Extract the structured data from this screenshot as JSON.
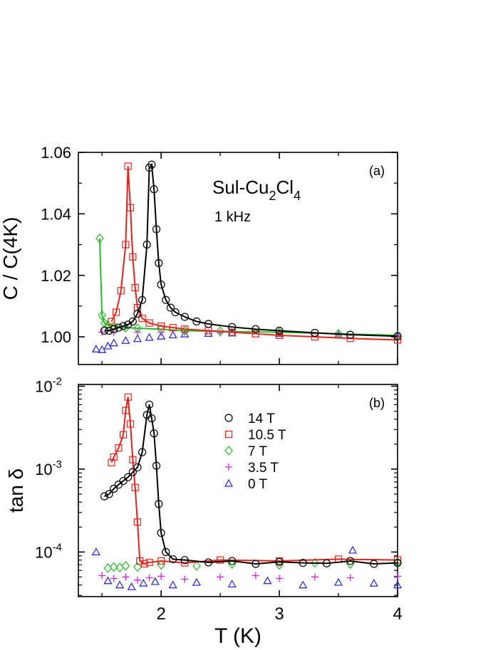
{
  "chart_data": [
    {
      "panel_label": "(a)",
      "type": "line",
      "ylabel": "C / C(4K)",
      "xlim": [
        1.3,
        4.0
      ],
      "ylim": [
        0.991,
        1.06
      ],
      "yscale": "linear",
      "x_ticks": [
        "2",
        "3",
        "4"
      ],
      "y_ticks": [
        "1.00",
        "1.02",
        "1.04",
        "1.06"
      ],
      "annotations": {
        "material_main": "Sul-Cu",
        "sub1": "2",
        "material_mid": "Cl",
        "sub2": "4",
        "frequency": "1 kHz"
      },
      "series": [
        {
          "name": "14 T",
          "color": "#000000",
          "marker": "circle",
          "x": [
            1.52,
            1.56,
            1.6,
            1.64,
            1.68,
            1.72,
            1.76,
            1.8,
            1.84,
            1.88,
            1.9,
            1.92,
            1.94,
            1.96,
            1.98,
            2.0,
            2.04,
            2.08,
            2.12,
            2.2,
            2.3,
            2.4,
            2.6,
            2.8,
            3.0,
            3.3,
            3.6,
            4.0
          ],
          "y": [
            1.002,
            1.002,
            1.0025,
            1.003,
            1.0035,
            1.004,
            1.005,
            1.0075,
            1.012,
            1.03,
            1.055,
            1.056,
            1.048,
            1.035,
            1.024,
            1.017,
            1.012,
            1.0095,
            1.008,
            1.0065,
            1.005,
            1.0042,
            1.0032,
            1.0025,
            1.002,
            1.0013,
            1.0007,
            1.0002
          ]
        },
        {
          "name": "10.5 T",
          "color": "#e8201a",
          "marker": "square",
          "x": [
            1.58,
            1.62,
            1.66,
            1.7,
            1.72,
            1.74,
            1.76,
            1.78,
            1.8,
            1.84,
            1.9,
            2.0,
            2.1,
            2.2,
            2.4,
            2.6,
            2.8,
            3.0,
            3.3,
            3.6,
            4.0
          ],
          "y": [
            1.005,
            1.008,
            1.015,
            1.03,
            1.0555,
            1.042,
            1.026,
            1.016,
            1.0095,
            1.006,
            1.0045,
            1.0035,
            1.003,
            1.0025,
            1.002,
            1.0015,
            1.001,
            1.0005,
            1.0,
            0.9995,
            0.999
          ]
        },
        {
          "name": "7 T",
          "color": "#22c022",
          "marker": "diamond",
          "x": [
            1.48,
            1.5,
            1.52,
            1.55,
            1.6,
            1.7,
            1.8,
            2.0,
            2.2,
            2.5,
            3.0,
            3.5,
            4.0
          ],
          "y": [
            1.032,
            1.007,
            1.0045,
            1.0038,
            1.0035,
            1.003,
            1.0028,
            1.0025,
            1.002,
            1.0018,
            1.0015,
            1.001,
            1.0005
          ]
        },
        {
          "name": "3.5 T",
          "color": "#e01ee0",
          "marker": "plus",
          "x": [
            1.5,
            1.6,
            1.8,
            2.0,
            2.2,
            2.5,
            3.0,
            3.5,
            4.0
          ],
          "y": [
            1.0015,
            1.0015,
            1.0015,
            1.0015,
            1.0015,
            1.0013,
            1.0011,
            1.0007,
            1.0003
          ]
        },
        {
          "name": "0 T",
          "color": "#2020e0",
          "marker": "triangle",
          "x": [
            1.45,
            1.5,
            1.55,
            1.6,
            1.7,
            1.8,
            1.9,
            2.0,
            2.1,
            2.2,
            2.4,
            2.6,
            3.0,
            3.5,
            4.0
          ],
          "y": [
            0.996,
            0.9958,
            0.997,
            0.998,
            0.9988,
            0.9994,
            0.9998,
            1.0002,
            1.0006,
            1.0009,
            1.0011,
            1.0012,
            1.001,
            1.0006,
            1.0002
          ]
        }
      ]
    },
    {
      "panel_label": "(b)",
      "type": "line",
      "ylabel": "tan δ",
      "xlabel": "T (K)",
      "xlim": [
        1.3,
        4.0
      ],
      "ylim": [
        2.9e-05,
        0.0105
      ],
      "yscale": "log",
      "x_ticks": [
        "2",
        "3",
        "4"
      ],
      "y_ticks": [
        {
          "base": "10",
          "exp": "-4"
        },
        {
          "base": "10",
          "exp": "-3"
        },
        {
          "base": "10",
          "exp": "-2"
        }
      ],
      "legend_position": "top-right",
      "series": [
        {
          "name": "14 T",
          "color": "#000000",
          "marker": "circle",
          "x": [
            1.52,
            1.56,
            1.6,
            1.64,
            1.68,
            1.72,
            1.76,
            1.8,
            1.84,
            1.88,
            1.9,
            1.92,
            1.94,
            1.96,
            1.98,
            2.0,
            2.04,
            2.1,
            2.2,
            2.4,
            2.6,
            2.8,
            3.0,
            3.2,
            3.4,
            3.6,
            3.8,
            4.0
          ],
          "y": [
            0.00047,
            0.0005,
            0.00058,
            0.00065,
            0.00072,
            0.0008,
            0.00092,
            0.00105,
            0.0016,
            0.0045,
            0.006,
            0.0041,
            0.0027,
            0.0011,
            0.00038,
            0.00017,
            0.0001,
            8.2e-05,
            8e-05,
            7.5e-05,
            7.8e-05,
            7.2e-05,
            7.6e-05,
            7.4e-05,
            7.3e-05,
            7.8e-05,
            7.2e-05,
            7.4e-05
          ]
        },
        {
          "name": "10.5 T",
          "color": "#e8201a",
          "marker": "square",
          "x": [
            1.58,
            1.6,
            1.64,
            1.68,
            1.7,
            1.72,
            1.74,
            1.76,
            1.78,
            1.8,
            1.82,
            1.86,
            1.9,
            2.0,
            2.2,
            2.5,
            3.0,
            3.5,
            4.0
          ],
          "y": [
            0.0012,
            0.0014,
            0.0018,
            0.0026,
            0.0051,
            0.0074,
            0.0035,
            0.0013,
            0.0006,
            0.00023,
            7.8e-05,
            7.2e-05,
            7.5e-05,
            7.8e-05,
            7.4e-05,
            8e-05,
            7.8e-05,
            8.2e-05,
            8e-05
          ]
        },
        {
          "name": "7 T",
          "color": "#22c022",
          "marker": "diamond",
          "x": [
            1.55,
            1.6,
            1.65,
            1.7,
            1.8,
            2.0,
            2.3,
            2.6,
            3.0,
            3.3,
            3.6,
            4.0
          ],
          "y": [
            6.4e-05,
            6.6e-05,
            6.5e-05,
            6.8e-05,
            6.6e-05,
            7e-05,
            6.8e-05,
            7.2e-05,
            7e-05,
            7.4e-05,
            7.2e-05,
            7.5e-05
          ]
        },
        {
          "name": "3.5 T",
          "color": "#e01ee0",
          "marker": "plus",
          "x": [
            1.5,
            1.6,
            1.7,
            1.8,
            1.9,
            2.0,
            2.2,
            2.5,
            2.8,
            3.0,
            3.3,
            3.6,
            4.0
          ],
          "y": [
            5.2e-05,
            4.8e-05,
            5e-05,
            4.6e-05,
            4.9e-05,
            5.1e-05,
            4.7e-05,
            5e-05,
            5.2e-05,
            4.8e-05,
            5e-05,
            4.9e-05,
            5.1e-05
          ]
        },
        {
          "name": "0 T",
          "color": "#2020e0",
          "marker": "triangle",
          "x": [
            1.45,
            1.55,
            1.65,
            1.75,
            1.85,
            1.95,
            2.1,
            2.3,
            2.6,
            2.9,
            3.2,
            3.5,
            3.62,
            3.8,
            4.0
          ],
          "y": [
            0.0001,
            4.5e-05,
            4e-05,
            3.8e-05,
            4.2e-05,
            4.4e-05,
            4e-05,
            4.3e-05,
            4.1e-05,
            4.5e-05,
            4e-05,
            4.3e-05,
            0.000105,
            4.2e-05,
            4e-05
          ]
        }
      ]
    }
  ]
}
